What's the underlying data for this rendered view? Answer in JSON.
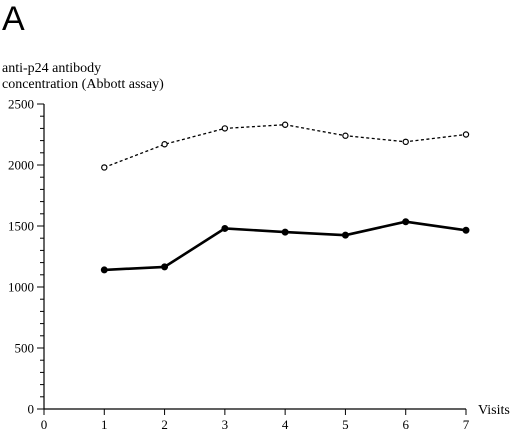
{
  "panel_label": "A",
  "chart_data": {
    "type": "line",
    "title": "",
    "ylabel_lines": [
      "anti-p24 antibody",
      "concentration (Abbott assay)"
    ],
    "xlabel": "Visits",
    "x": [
      1,
      2,
      3,
      4,
      5,
      6,
      7
    ],
    "xlim": [
      0,
      7
    ],
    "ylim": [
      0,
      2500
    ],
    "xticks": [
      0,
      1,
      2,
      3,
      4,
      5,
      6,
      7
    ],
    "yticks": [
      0,
      500,
      1000,
      1500,
      2000,
      2500
    ],
    "y_minor_step": 100,
    "grid": false,
    "series": [
      {
        "values": [
          1980,
          2170,
          2300,
          2330,
          2240,
          2190,
          2250
        ],
        "line_style": "dashed",
        "marker": "open-circle",
        "color": "#000000"
      },
      {
        "values": [
          1140,
          1165,
          1480,
          1450,
          1425,
          1535,
          1465
        ],
        "line_style": "solid",
        "marker": "filled-circle",
        "color": "#000000"
      }
    ]
  }
}
